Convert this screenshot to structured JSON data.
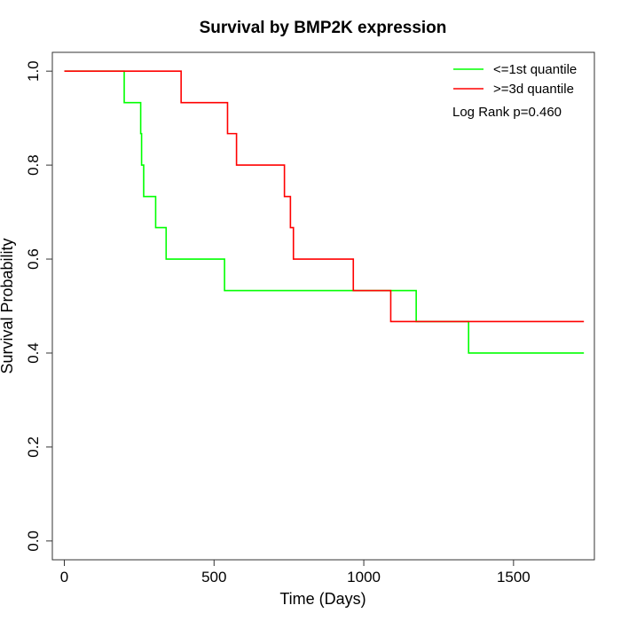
{
  "chart_data": {
    "type": "line",
    "title": "Survival by BMP2K expression",
    "xlabel": "Time (Days)",
    "ylabel": "Survival Probability",
    "xlim": [
      -40,
      1770
    ],
    "ylim": [
      -0.04,
      1.04
    ],
    "xticks": [
      0,
      500,
      1000,
      1500
    ],
    "xtick_labels": [
      "0",
      "500",
      "1000",
      "1500"
    ],
    "yticks": [
      0.0,
      0.2,
      0.4,
      0.6,
      0.8,
      1.0
    ],
    "ytick_labels": [
      "0.0",
      "0.2",
      "0.4",
      "0.6",
      "0.8",
      "1.0"
    ],
    "grid": false,
    "legend_position": "top-right",
    "annotation": "Log Rank p=0.460",
    "series": [
      {
        "name": "<=1st quantile",
        "color": "#00ff00",
        "step": true,
        "x": [
          0,
          200,
          255,
          258,
          265,
          305,
          340,
          535,
          1175,
          1350,
          1735
        ],
        "y": [
          1.0,
          0.933,
          0.867,
          0.8,
          0.733,
          0.667,
          0.6,
          0.533,
          0.467,
          0.4,
          0.4
        ]
      },
      {
        "name": ">=3d quantile",
        "color": "#ff0000",
        "step": true,
        "x": [
          0,
          390,
          545,
          575,
          735,
          755,
          765,
          965,
          1090,
          1735
        ],
        "y": [
          1.0,
          0.933,
          0.867,
          0.8,
          0.733,
          0.667,
          0.6,
          0.533,
          0.467,
          0.467
        ]
      }
    ]
  }
}
